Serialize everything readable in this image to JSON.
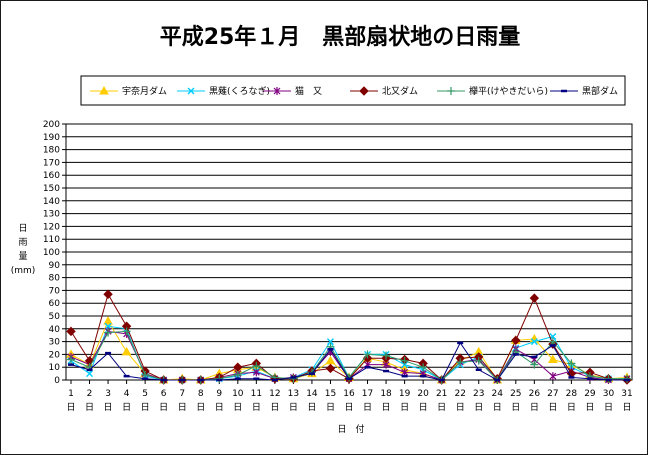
{
  "chart_data": {
    "type": "line",
    "title": "平成25年１月　黒部扇状地の日雨量",
    "ylabel": [
      "日",
      "雨",
      "量",
      "(mm)"
    ],
    "xlabel": "日　付",
    "ylim": [
      0,
      200
    ],
    "ytick_step": 10,
    "grid": true,
    "legend_position": "top",
    "day_suffix": "日",
    "x": [
      1,
      2,
      3,
      4,
      5,
      6,
      7,
      8,
      9,
      10,
      11,
      12,
      13,
      14,
      15,
      16,
      17,
      18,
      19,
      20,
      21,
      22,
      23,
      24,
      25,
      26,
      27,
      28,
      29,
      30,
      31
    ],
    "series": [
      {
        "name": "宇奈月ダム",
        "color": "#ffcc00",
        "marker": "triangle",
        "values": [
          20,
          12,
          46,
          22,
          5,
          0,
          1,
          0,
          5,
          8,
          10,
          2,
          1,
          5,
          15,
          2,
          17,
          14,
          8,
          5,
          0,
          15,
          22,
          0,
          31,
          32,
          16,
          12,
          4,
          1,
          2
        ]
      },
      {
        "name": "黒薙(くろなぎ)",
        "color": "#00ccff",
        "marker": "x",
        "values": [
          15,
          5,
          42,
          40,
          3,
          0,
          0,
          0,
          1,
          3,
          7,
          1,
          2,
          8,
          30,
          2,
          20,
          20,
          12,
          8,
          0,
          12,
          18,
          0,
          25,
          30,
          34,
          10,
          3,
          1,
          1
        ]
      },
      {
        "name": "猫　又",
        "color": "#800080",
        "marker": "asterisk",
        "values": [
          18,
          12,
          38,
          36,
          5,
          0,
          0,
          0,
          2,
          5,
          6,
          1,
          2,
          6,
          22,
          1,
          12,
          12,
          6,
          5,
          0,
          14,
          16,
          0,
          24,
          16,
          3,
          7,
          2,
          0,
          1
        ]
      },
      {
        "name": "北又ダム",
        "color": "#800000",
        "marker": "diamond",
        "values": [
          38,
          15,
          67,
          42,
          7,
          0,
          0,
          0,
          2,
          10,
          13,
          1,
          1,
          7,
          9,
          1,
          17,
          17,
          16,
          13,
          0,
          17,
          18,
          1,
          31,
          64,
          28,
          5,
          6,
          1,
          0
        ]
      },
      {
        "name": "欅平(けやきだいら)",
        "color": "#339966",
        "marker": "plus",
        "values": [
          16,
          10,
          37,
          38,
          4,
          0,
          0,
          0,
          1,
          4,
          11,
          2,
          1,
          6,
          26,
          2,
          20,
          19,
          15,
          10,
          0,
          14,
          15,
          0,
          22,
          12,
          30,
          13,
          3,
          1,
          1
        ]
      },
      {
        "name": "黒部ダム",
        "color": "#000080",
        "marker": "dash",
        "values": [
          12,
          8,
          21,
          3,
          1,
          0,
          0,
          0,
          0,
          1,
          1,
          0,
          2,
          5,
          24,
          1,
          10,
          7,
          3,
          3,
          0,
          29,
          8,
          0,
          20,
          18,
          27,
          2,
          1,
          0,
          0
        ]
      }
    ]
  }
}
